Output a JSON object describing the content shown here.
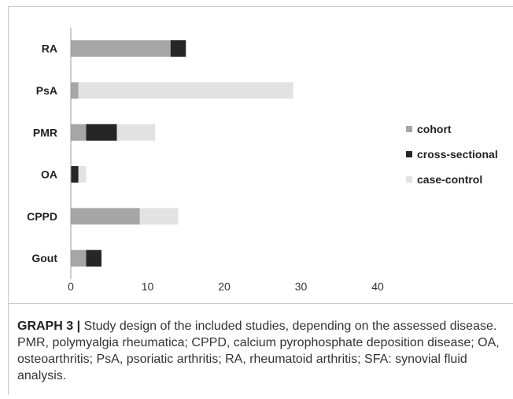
{
  "chart_data": {
    "type": "bar",
    "orientation": "horizontal",
    "stacked": true,
    "categories": [
      "RA",
      "PsA",
      "PMR",
      "OA",
      "CPPD",
      "Gout"
    ],
    "series": [
      {
        "name": "cohort",
        "color": "#a6a6a6",
        "values": [
          13,
          1,
          2,
          0,
          9,
          2
        ]
      },
      {
        "name": "cross-sectional",
        "color": "#262626",
        "values": [
          2,
          0,
          4,
          1,
          0,
          2
        ]
      },
      {
        "name": "case-control",
        "color": "#e2e2e2",
        "values": [
          0,
          28,
          5,
          1,
          5,
          0
        ]
      }
    ],
    "xlim": [
      0,
      40
    ],
    "xticks": [
      0,
      10,
      20,
      30,
      40
    ],
    "grid": false,
    "legend_position": "right"
  },
  "caption": {
    "label": "GRAPH 3 |",
    "text": " Study design of the included studies, depending on the assessed disease. PMR, polymyalgia rheumatica; CPPD, calcium pyrophosphate deposition disease; OA, osteoarthritis; PsA, psoriatic arthritis; RA, rheumatoid arthritis; SFA: synovial fluid analysis."
  }
}
